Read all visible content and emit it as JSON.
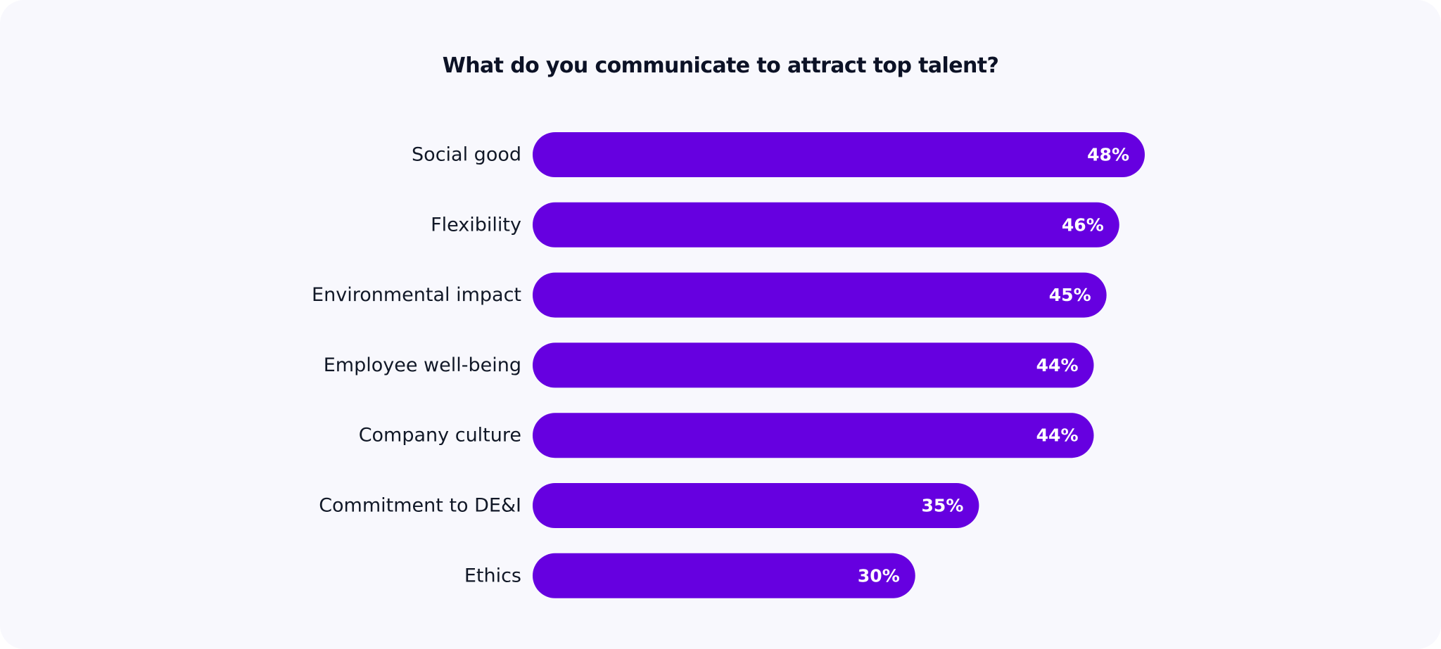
{
  "chart_data": {
    "type": "bar",
    "orientation": "horizontal",
    "title": "What do you communicate to attract top talent?",
    "categories": [
      "Social good",
      "Flexibility",
      "Environmental impact",
      "Employee well-being",
      "Company culture",
      "Commitment to DE&I",
      "Ethics"
    ],
    "values": [
      48,
      46,
      45,
      44,
      44,
      35,
      30
    ],
    "value_labels": [
      "48%",
      "46%",
      "45%",
      "44%",
      "44%",
      "35%",
      "30%"
    ],
    "unit": "%",
    "xlim": [
      0,
      48
    ],
    "grid": false,
    "legend": "none"
  },
  "colors": {
    "bar": "#6600e0",
    "card_background": "#f8f8fd",
    "title": "#0c1226",
    "category_label": "#111827",
    "value_label": "#ffffff"
  }
}
